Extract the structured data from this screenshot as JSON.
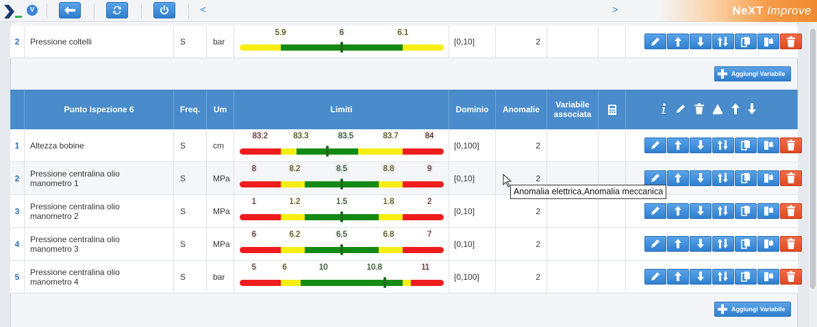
{
  "topbar": {
    "logo_icon": "chevron-logo-icon",
    "version_badge": "V",
    "brand_main": "NeXT ",
    "brand_italic": "Improve",
    "prev_arrow": "<",
    "next_arrow": ">"
  },
  "first_row": {
    "num": "2",
    "name": "Pressione coltelli",
    "freq": "S",
    "um": "bar",
    "labels": [
      {
        "v": "5.9",
        "pos": 0.2,
        "tone": "yellow"
      },
      {
        "v": "6",
        "pos": 0.5,
        "tone": "green"
      },
      {
        "v": "6.1",
        "pos": 0.8,
        "tone": "yellow"
      }
    ],
    "segments": [
      [
        "yellow",
        0.2
      ],
      [
        "green",
        0.8
      ],
      [
        "yellow",
        1.0
      ]
    ],
    "marker": 0.5,
    "dominio": "[0,10]",
    "anomalie": "2"
  },
  "add_variable_label": "Aggiungi Variabile",
  "header": {
    "punto": "Punto Ispezione 6",
    "freq": "Freq.",
    "um": "Um",
    "limiti": "Limiti",
    "dominio": "Dominio",
    "anomalie": "Anomalie",
    "variabili": "Variabile associata"
  },
  "rows": [
    {
      "num": "1",
      "name": "Altezza bobine",
      "name2": "",
      "freq": "S",
      "um": "cm",
      "labels": [
        {
          "v": "83.2",
          "pos": 0.1,
          "tone": "red"
        },
        {
          "v": "83.3",
          "pos": 0.3,
          "tone": "yellow"
        },
        {
          "v": "83.5",
          "pos": 0.52,
          "tone": "green"
        },
        {
          "v": "83.7",
          "pos": 0.74,
          "tone": "yellow"
        },
        {
          "v": "84",
          "pos": 0.93,
          "tone": "red"
        }
      ],
      "segments": [
        [
          "red",
          0.2
        ],
        [
          "yellow",
          0.28
        ],
        [
          "green",
          0.58
        ],
        [
          "yellow",
          0.8
        ],
        [
          "red",
          1.0
        ]
      ],
      "marker": 0.43,
      "dominio": "[0,100]",
      "anomalie": "2"
    },
    {
      "num": "2",
      "name": "Pressione centralina olio",
      "name2": "manometro 1",
      "freq": "S",
      "um": "MPa",
      "labels": [
        {
          "v": "8",
          "pos": 0.07,
          "tone": "red"
        },
        {
          "v": "8.2",
          "pos": 0.27,
          "tone": "yellow"
        },
        {
          "v": "8.5",
          "pos": 0.5,
          "tone": "green"
        },
        {
          "v": "8.8",
          "pos": 0.73,
          "tone": "yellow"
        },
        {
          "v": "9",
          "pos": 0.93,
          "tone": "red"
        }
      ],
      "segments": [
        [
          "red",
          0.2
        ],
        [
          "yellow",
          0.32
        ],
        [
          "green",
          0.68
        ],
        [
          "yellow",
          0.8
        ],
        [
          "red",
          1.0
        ]
      ],
      "marker": 0.5,
      "dominio": "[0,10]",
      "anomalie": "2"
    },
    {
      "num": "3",
      "name": "Pressione centralina olio",
      "name2": "manometro 2",
      "freq": "S",
      "um": "MPa",
      "labels": [
        {
          "v": "1",
          "pos": 0.07,
          "tone": "red"
        },
        {
          "v": "1.2",
          "pos": 0.27,
          "tone": "yellow"
        },
        {
          "v": "1.5",
          "pos": 0.5,
          "tone": "green"
        },
        {
          "v": "1.8",
          "pos": 0.73,
          "tone": "yellow"
        },
        {
          "v": "2",
          "pos": 0.93,
          "tone": "red"
        }
      ],
      "segments": [
        [
          "red",
          0.2
        ],
        [
          "yellow",
          0.32
        ],
        [
          "green",
          0.68
        ],
        [
          "yellow",
          0.8
        ],
        [
          "red",
          1.0
        ]
      ],
      "marker": 0.5,
      "dominio": "[0,10]",
      "anomalie": "2"
    },
    {
      "num": "4",
      "name": "Pressione centralina olio",
      "name2": "manometro 3",
      "freq": "S",
      "um": "MPa",
      "labels": [
        {
          "v": "6",
          "pos": 0.07,
          "tone": "red"
        },
        {
          "v": "6.2",
          "pos": 0.27,
          "tone": "yellow"
        },
        {
          "v": "6.5",
          "pos": 0.5,
          "tone": "green"
        },
        {
          "v": "6.8",
          "pos": 0.73,
          "tone": "yellow"
        },
        {
          "v": "7",
          "pos": 0.93,
          "tone": "red"
        }
      ],
      "segments": [
        [
          "red",
          0.2
        ],
        [
          "yellow",
          0.32
        ],
        [
          "green",
          0.68
        ],
        [
          "yellow",
          0.8
        ],
        [
          "red",
          1.0
        ]
      ],
      "marker": 0.5,
      "dominio": "[0,10]",
      "anomalie": "2"
    },
    {
      "num": "5",
      "name": "Pressione centralina olio",
      "name2": "manometro 4",
      "freq": "S",
      "um": "bar",
      "labels": [
        {
          "v": "5",
          "pos": 0.07,
          "tone": "red"
        },
        {
          "v": "6",
          "pos": 0.22,
          "tone": "yellow"
        },
        {
          "v": "10",
          "pos": 0.41,
          "tone": "green"
        },
        {
          "v": "10.8",
          "pos": 0.66,
          "tone": "green"
        },
        {
          "v": "11",
          "pos": 0.91,
          "tone": "red"
        }
      ],
      "segments": [
        [
          "red",
          0.2
        ],
        [
          "yellow",
          0.3
        ],
        [
          "green",
          0.8
        ],
        [
          "yellow",
          0.84
        ],
        [
          "red",
          1.0
        ]
      ],
      "marker": 0.71,
      "dominio": "[0,100]",
      "anomalie": "2"
    }
  ],
  "tooltip": "Anomalia elettrica,Anomalia meccanica",
  "colors": {
    "red": "#ee1c1c",
    "yellow": "#f6ee12",
    "green": "#138a13",
    "header_blue": "#4a8ccb",
    "accent": "#3b86d6"
  },
  "row_action_icons": [
    "pencil-icon",
    "arrow-up-icon",
    "arrow-down-icon",
    "swap-icon",
    "copy-icon",
    "paste-icon",
    "trash-icon"
  ]
}
